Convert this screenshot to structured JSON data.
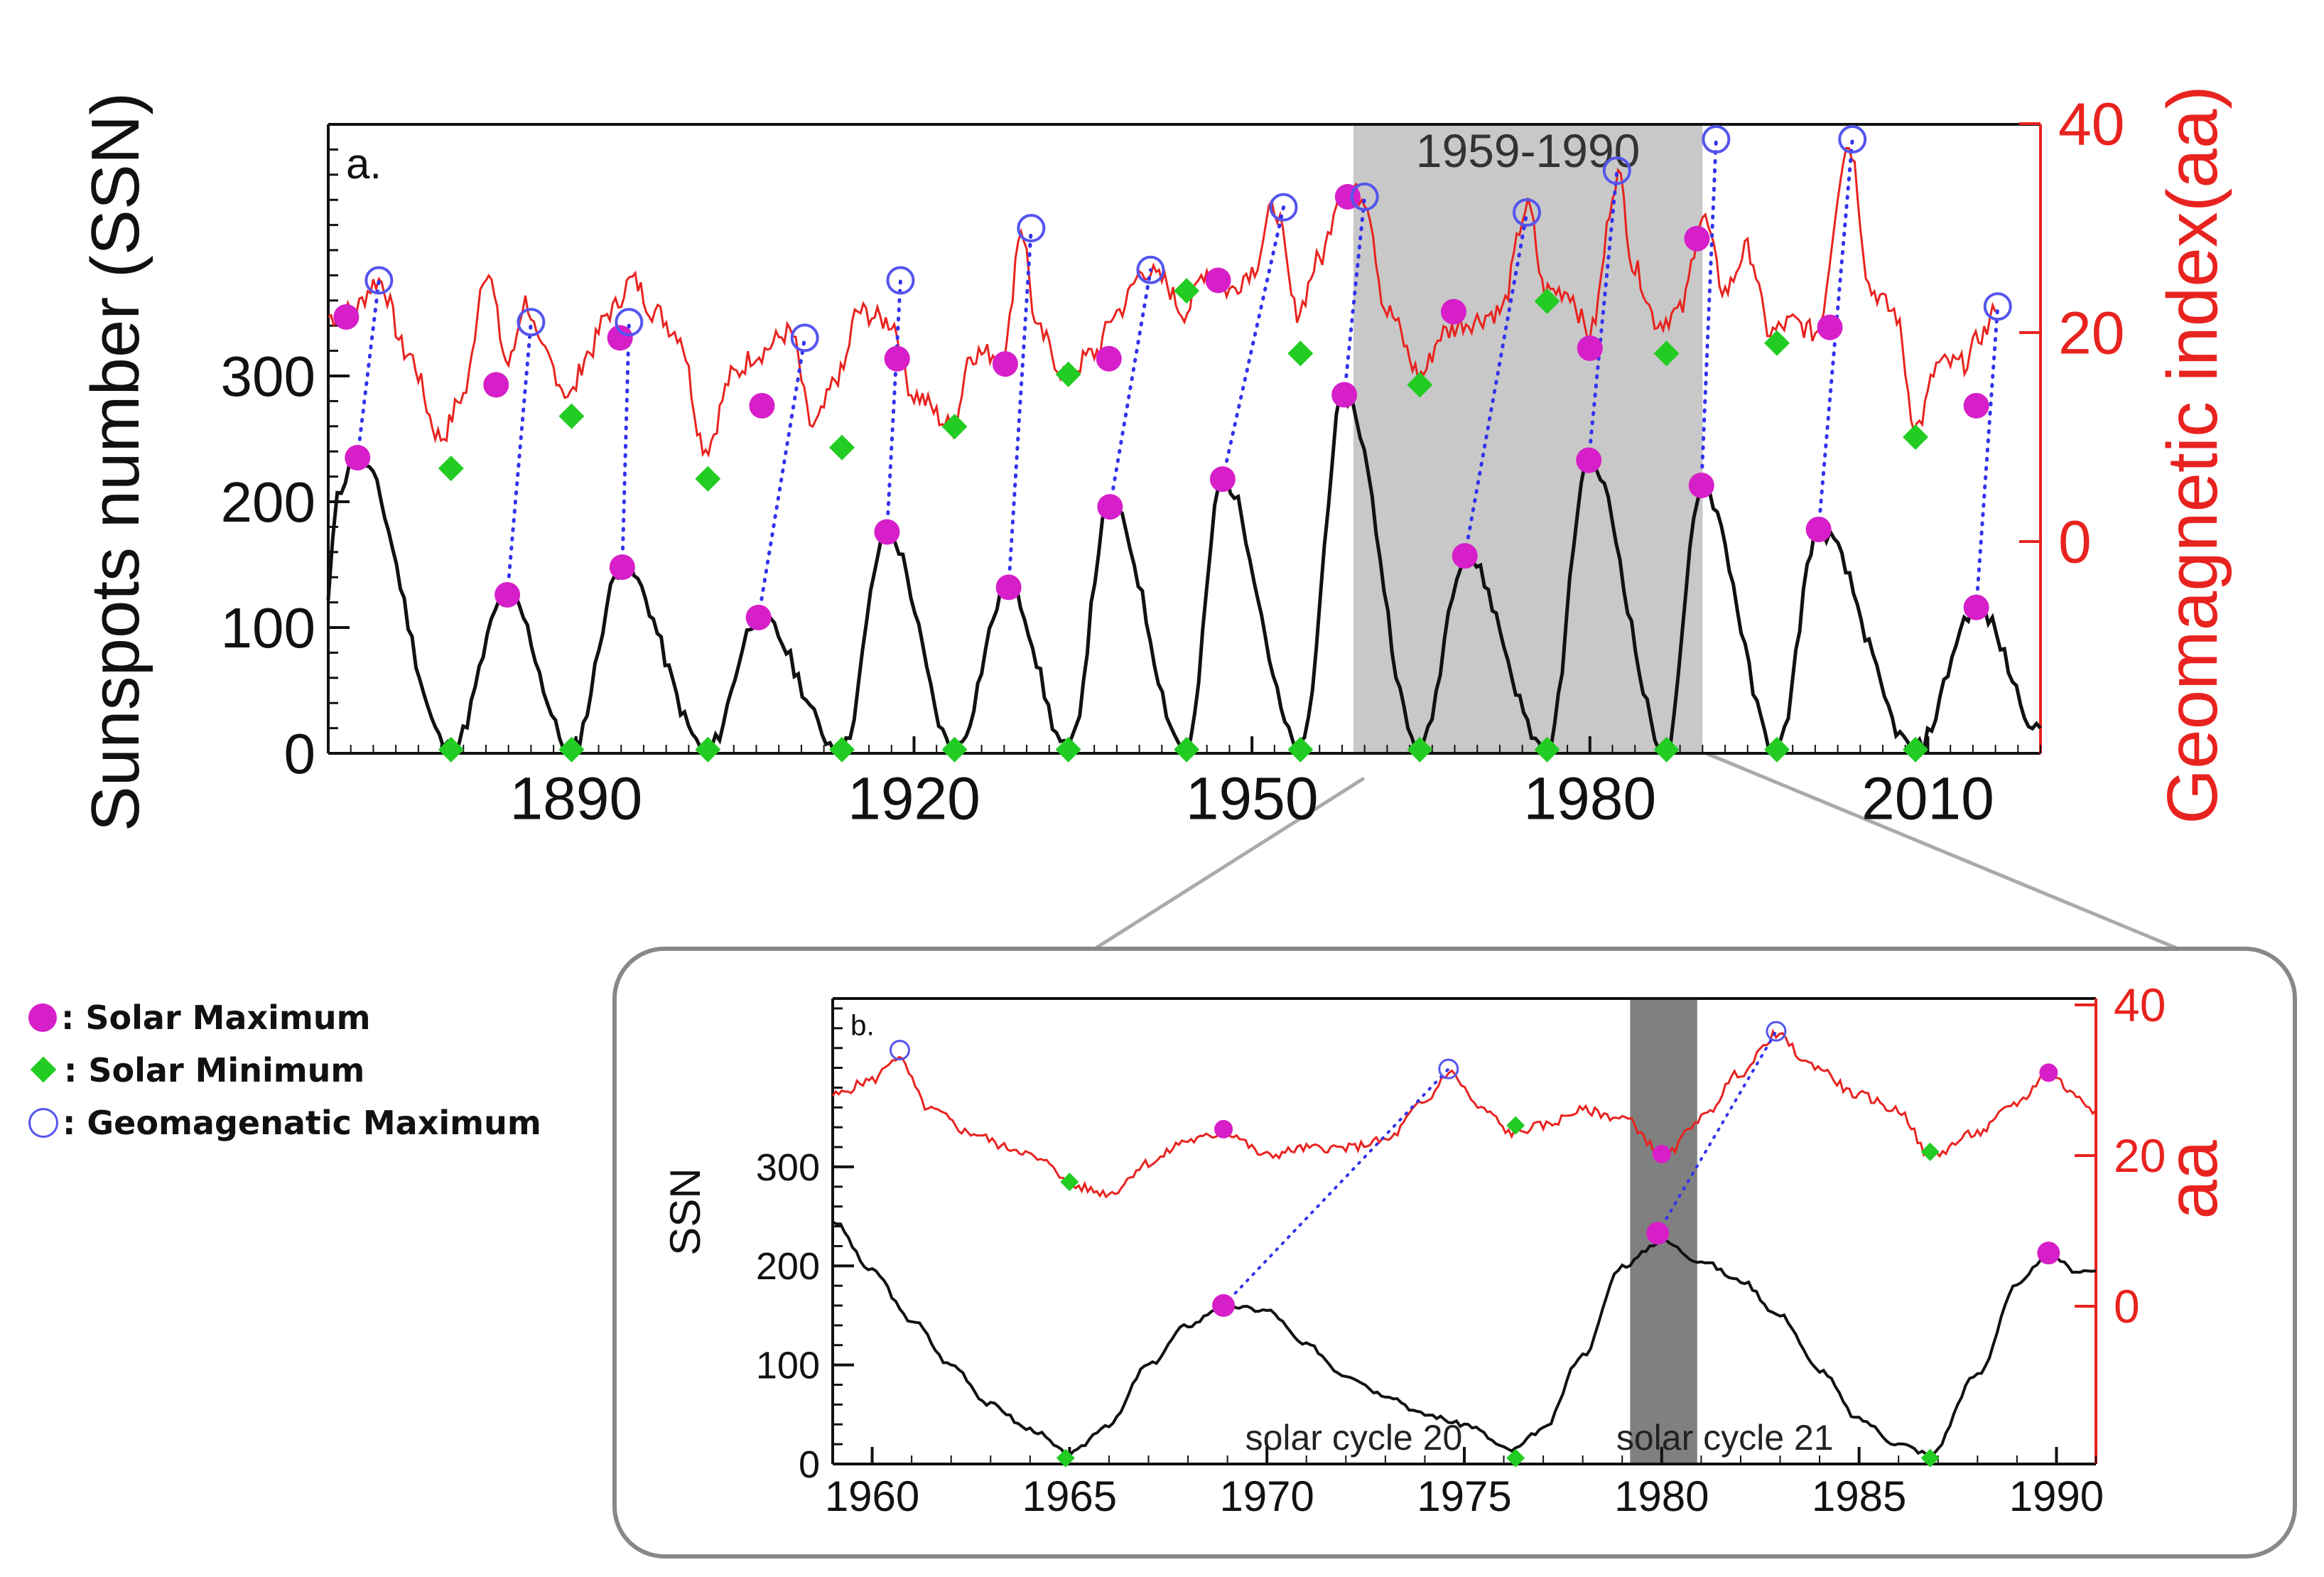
{
  "colors": {
    "ssn": "#111111",
    "aa": "#e8231f",
    "solar_max": "#d61fc8",
    "solar_min": "#22cc22",
    "geo_max": "#5555ee",
    "highlight_a": "#c8c8c8",
    "highlight_b": "#808080",
    "axis_red": "#e8231f"
  },
  "legend": {
    "solar_max": ": Solar Maximum",
    "solar_min": ": Solar Minimum",
    "geo_max": ": Geomagenatic Maximum"
  },
  "chart_data": [
    {
      "type": "line",
      "panel_label": "a.",
      "highlight_label": "1959-1990",
      "highlight_range": [
        1959,
        1990
      ],
      "ylabel": "Sunspots number (SSN)",
      "y2label": "Geomagnetic index(aa)",
      "xlim": [
        1868,
        2020
      ],
      "ylim": [
        0,
        500
      ],
      "y_ticks": [
        0,
        100,
        200,
        300
      ],
      "y2_ticks": [
        0,
        20,
        40
      ],
      "x_ticks": [
        1890,
        1920,
        1950,
        1980,
        2010
      ],
      "ssn_peaks": [
        [
          1870.6,
          235
        ],
        [
          1883.9,
          126
        ],
        [
          1894.1,
          148
        ],
        [
          1906.2,
          108
        ],
        [
          1917.6,
          176
        ],
        [
          1928.4,
          132
        ],
        [
          1937.4,
          196
        ],
        [
          1947.4,
          218
        ],
        [
          1958.2,
          285
        ],
        [
          1968.9,
          157
        ],
        [
          1979.9,
          233
        ],
        [
          1989.9,
          213
        ],
        [
          2000.3,
          178
        ],
        [
          2014.3,
          116
        ]
      ],
      "ssn_minima": [
        1878.9,
        1889.6,
        1901.7,
        1913.6,
        1923.6,
        1933.7,
        1944.2,
        1954.3,
        1964.9,
        1976.2,
        1986.8,
        1996.6,
        2008.9
      ],
      "aa_series": {
        "name": "aa",
        "x": [
          1868,
          1870,
          1872.5,
          1875,
          1878,
          1880,
          1882,
          1884,
          1885.5,
          1887,
          1889.5,
          1891,
          1893,
          1895,
          1897,
          1899,
          1901.5,
          1904,
          1906,
          1909,
          1911,
          1913.5,
          1915,
          1918,
          1920,
          1923.5,
          1925,
          1928,
          1929.5,
          1931,
          1933.5,
          1936,
          1938,
          1940.5,
          1942,
          1944,
          1946,
          1948,
          1950,
          1952,
          1954,
          1956,
          1958,
          1960,
          1962,
          1965,
          1967,
          1969,
          1972,
          1974.5,
          1976,
          1978,
          1980,
          1982.5,
          1984,
          1986,
          1988,
          1990,
          1992,
          1994,
          1996,
          1998,
          2000,
          2003,
          2005,
          2007,
          2009,
          2011,
          2013,
          2015,
          2016
        ],
        "values": [
          21.5,
          22,
          25,
          18,
          10,
          14,
          26,
          17,
          23,
          18,
          14,
          18,
          22,
          25,
          22,
          20,
          9,
          16,
          18,
          20,
          11,
          16,
          22,
          21,
          14,
          11,
          18,
          18,
          30,
          20,
          16,
          18,
          22,
          26,
          25,
          22,
          26,
          24,
          26,
          32,
          22,
          27,
          34,
          33,
          22,
          16,
          20,
          21,
          22,
          32,
          24,
          24,
          20,
          35,
          26,
          21,
          22,
          31,
          24,
          28,
          20,
          21,
          20,
          38,
          24,
          22,
          11,
          17,
          17,
          20,
          22
        ]
      },
      "aa_minima": [
        [
          1878.9,
          7
        ],
        [
          1889.6,
          12
        ],
        [
          1901.7,
          6
        ],
        [
          1913.6,
          9
        ],
        [
          1923.6,
          11
        ],
        [
          1933.7,
          16
        ],
        [
          1944.2,
          24
        ],
        [
          1954.3,
          18
        ],
        [
          1964.9,
          15
        ],
        [
          1976.2,
          23
        ],
        [
          1986.8,
          18
        ],
        [
          1996.6,
          19
        ],
        [
          2008.9,
          10
        ]
      ],
      "aa_at_ssn_max": [
        [
          1869.6,
          21.5
        ],
        [
          1882.9,
          15
        ],
        [
          1893.9,
          19.5
        ],
        [
          1906.5,
          13
        ],
        [
          1918.5,
          17.5
        ],
        [
          1928.1,
          17
        ],
        [
          1937.3,
          17.5
        ],
        [
          1947.0,
          25
        ],
        [
          1958.5,
          33
        ],
        [
          1967.9,
          22
        ],
        [
          1980.0,
          18.5
        ],
        [
          1989.5,
          29
        ],
        [
          2001.3,
          20.5
        ],
        [
          2014.3,
          13
        ]
      ],
      "geo_maxima": [
        [
          1872.5,
          25
        ],
        [
          1886.0,
          21
        ],
        [
          1894.7,
          21
        ],
        [
          1910.3,
          19.5
        ],
        [
          1918.8,
          25
        ],
        [
          1930.4,
          30
        ],
        [
          1941.0,
          26
        ],
        [
          1952.8,
          32
        ],
        [
          1960.0,
          33
        ],
        [
          1974.4,
          31.5
        ],
        [
          1982.4,
          35.5
        ],
        [
          1991.2,
          38.5
        ],
        [
          2003.3,
          38.5
        ],
        [
          2016.2,
          22.5
        ]
      ],
      "connectors": [
        [
          [
            1870.6,
            235
          ],
          [
            1872.5,
            25
          ]
        ],
        [
          [
            1883.9,
            126
          ],
          [
            1886.0,
            21
          ]
        ],
        [
          [
            1894.1,
            148
          ],
          [
            1894.7,
            21
          ]
        ],
        [
          [
            1906.2,
            108
          ],
          [
            1910.3,
            19.5
          ]
        ],
        [
          [
            1917.6,
            176
          ],
          [
            1918.8,
            25
          ]
        ],
        [
          [
            1928.4,
            132
          ],
          [
            1930.4,
            30
          ]
        ],
        [
          [
            1937.4,
            196
          ],
          [
            1941.0,
            26
          ]
        ],
        [
          [
            1947.4,
            218
          ],
          [
            1952.8,
            32
          ]
        ],
        [
          [
            1958.2,
            285
          ],
          [
            1960.0,
            33
          ]
        ],
        [
          [
            1968.9,
            157
          ],
          [
            1974.4,
            31.5
          ]
        ],
        [
          [
            1979.9,
            233
          ],
          [
            1982.4,
            35.5
          ]
        ],
        [
          [
            1989.9,
            213
          ],
          [
            1991.2,
            38.5
          ]
        ],
        [
          [
            2000.3,
            178
          ],
          [
            2003.3,
            38.5
          ]
        ],
        [
          [
            2014.3,
            116
          ],
          [
            2016.2,
            22.5
          ]
        ]
      ]
    },
    {
      "type": "line",
      "panel_label": "b.",
      "ylabel": "SSN",
      "y2label": "aa",
      "xlim": [
        1959,
        1991
      ],
      "ylim": [
        0,
        470
      ],
      "y_ticks": [
        0,
        100,
        200,
        300
      ],
      "y2_ticks": [
        0,
        20,
        40
      ],
      "x_ticks": [
        1960,
        1965,
        1970,
        1975,
        1980,
        1985,
        1990
      ],
      "highlight_range": [
        1979.2,
        1980.9
      ],
      "annotations": [
        "solar cycle 20",
        "solar cycle 21"
      ],
      "ssn_series": {
        "x": [
          1959,
          1960,
          1961,
          1962,
          1963,
          1964,
          1965,
          1966,
          1967,
          1968,
          1968.9,
          1970,
          1971,
          1972,
          1973,
          1974,
          1975,
          1976.2,
          1977,
          1978,
          1979,
          1980,
          1981,
          1982,
          1983,
          1984,
          1985,
          1986,
          1986.8,
          1988,
          1989,
          1989.8,
          1990.5,
          1991
        ],
        "values": [
          245,
          195,
          145,
          100,
          60,
          35,
          10,
          40,
          100,
          140,
          160,
          155,
          120,
          90,
          70,
          50,
          40,
          14,
          35,
          110,
          200,
          225,
          205,
          185,
          150,
          95,
          45,
          20,
          10,
          90,
          180,
          213,
          195,
          195
        ]
      },
      "aa_series": {
        "x": [
          1959,
          1960,
          1960.6,
          1961.5,
          1962.5,
          1963.5,
          1964.5,
          1965,
          1966,
          1967,
          1968,
          1969,
          1970,
          1971,
          1972,
          1973,
          1974,
          1974.6,
          1975.5,
          1976.2,
          1977,
          1978,
          1979,
          1980.1,
          1981,
          1982,
          1982.9,
          1983.8,
          1985,
          1986,
          1986.8,
          1988,
          1989,
          1989.8,
          1990.5,
          1991
        ],
        "values": [
          28,
          30,
          33,
          26,
          23,
          21,
          19,
          16,
          15,
          19,
          22,
          23,
          20,
          21,
          21,
          22,
          27,
          31,
          26,
          23,
          24,
          26,
          25,
          20,
          25,
          31,
          36,
          32,
          28,
          26,
          20,
          23,
          27,
          31,
          28,
          26
        ]
      },
      "solar_max": [
        [
          1968.9,
          160
        ],
        [
          1979.9,
          233
        ],
        [
          1989.8,
          213
        ]
      ],
      "solar_max_aa": [
        [
          1968.9,
          23.5
        ],
        [
          1980.0,
          20.2
        ],
        [
          1989.8,
          31
        ]
      ],
      "solar_min": [
        [
          1964.9,
          6
        ],
        [
          1976.3,
          6
        ],
        [
          1986.8,
          6
        ]
      ],
      "solar_min_aa": [
        [
          1965.0,
          16.5
        ],
        [
          1976.3,
          24
        ],
        [
          1986.8,
          20.5
        ]
      ],
      "geo_maxima": [
        [
          1960.7,
          34
        ],
        [
          1974.6,
          31.5
        ],
        [
          1982.9,
          36.5
        ]
      ],
      "connectors": [
        [
          [
            1968.9,
            160
          ],
          [
            1974.6,
            31.5
          ]
        ],
        [
          [
            1979.9,
            233
          ],
          [
            1982.9,
            36.5
          ]
        ]
      ]
    }
  ]
}
